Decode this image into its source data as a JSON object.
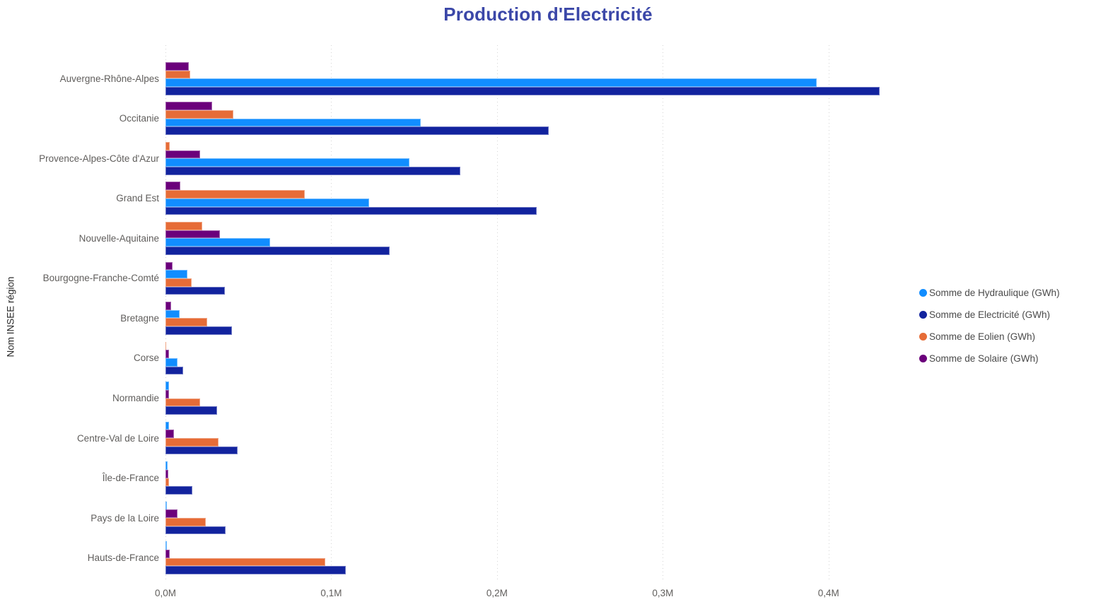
{
  "colors": {
    "background": "#FFFFFF",
    "title_text": "#3B47A8",
    "axis_text": "#605E5C",
    "axis_title_text": "#2B2B2B",
    "legend_text": "#4A4A4A",
    "gridline": "#D4D4D4"
  },
  "chart_data": {
    "type": "bar",
    "orientation": "horizontal",
    "title": "Production d'Electricité",
    "xlabel": "",
    "ylabel": "Nom INSEE région",
    "unit": "GWh",
    "grid": "vertical dotted gridlines",
    "legend_position": "right",
    "sort_within_category": "ascending, smallest bar on top",
    "x_axis": {
      "tick_labels": [
        "0,0M",
        "0,1M",
        "0,2M",
        "0,3M",
        "0,4M"
      ],
      "tick_values": [
        0,
        100000,
        200000,
        300000,
        400000
      ],
      "max": 450000
    },
    "categories": [
      "Auvergne-Rhône-Alpes",
      "Occitanie",
      "Provence-Alpes-Côte d'Azur",
      "Grand Est",
      "Nouvelle-Aquitaine",
      "Bourgogne-Franche-Comté",
      "Bretagne",
      "Corse",
      "Normandie",
      "Centre-Val de Loire",
      "Île-de-France",
      "Pays de la Loire",
      "Hauts-de-France"
    ],
    "series": [
      {
        "key": "hydraulique",
        "name": "Somme de Hydraulique (GWh)",
        "color": "#118DFF",
        "values": [
          393000,
          154000,
          147000,
          123000,
          63000,
          13300,
          8500,
          7400,
          2100,
          2100,
          1400,
          700,
          700
        ]
      },
      {
        "key": "electricite",
        "name": "Somme de Electricité (GWh)",
        "color": "#12239E",
        "values": [
          431000,
          231000,
          178000,
          224000,
          135000,
          36000,
          40000,
          10600,
          31000,
          43400,
          16300,
          36200,
          108600
        ]
      },
      {
        "key": "eolien",
        "name": "Somme de Eolien (GWh)",
        "color": "#E66C37",
        "values": [
          15000,
          41000,
          2700,
          84000,
          22000,
          15800,
          25000,
          600,
          21000,
          32000,
          2300,
          24400,
          96400
        ]
      },
      {
        "key": "solaire",
        "name": "Somme de Solaire (GWh)",
        "color": "#6B007B",
        "values": [
          14000,
          28000,
          21000,
          9000,
          33000,
          4400,
          3300,
          2100,
          2300,
          5300,
          1700,
          7300,
          2700
        ]
      }
    ]
  }
}
